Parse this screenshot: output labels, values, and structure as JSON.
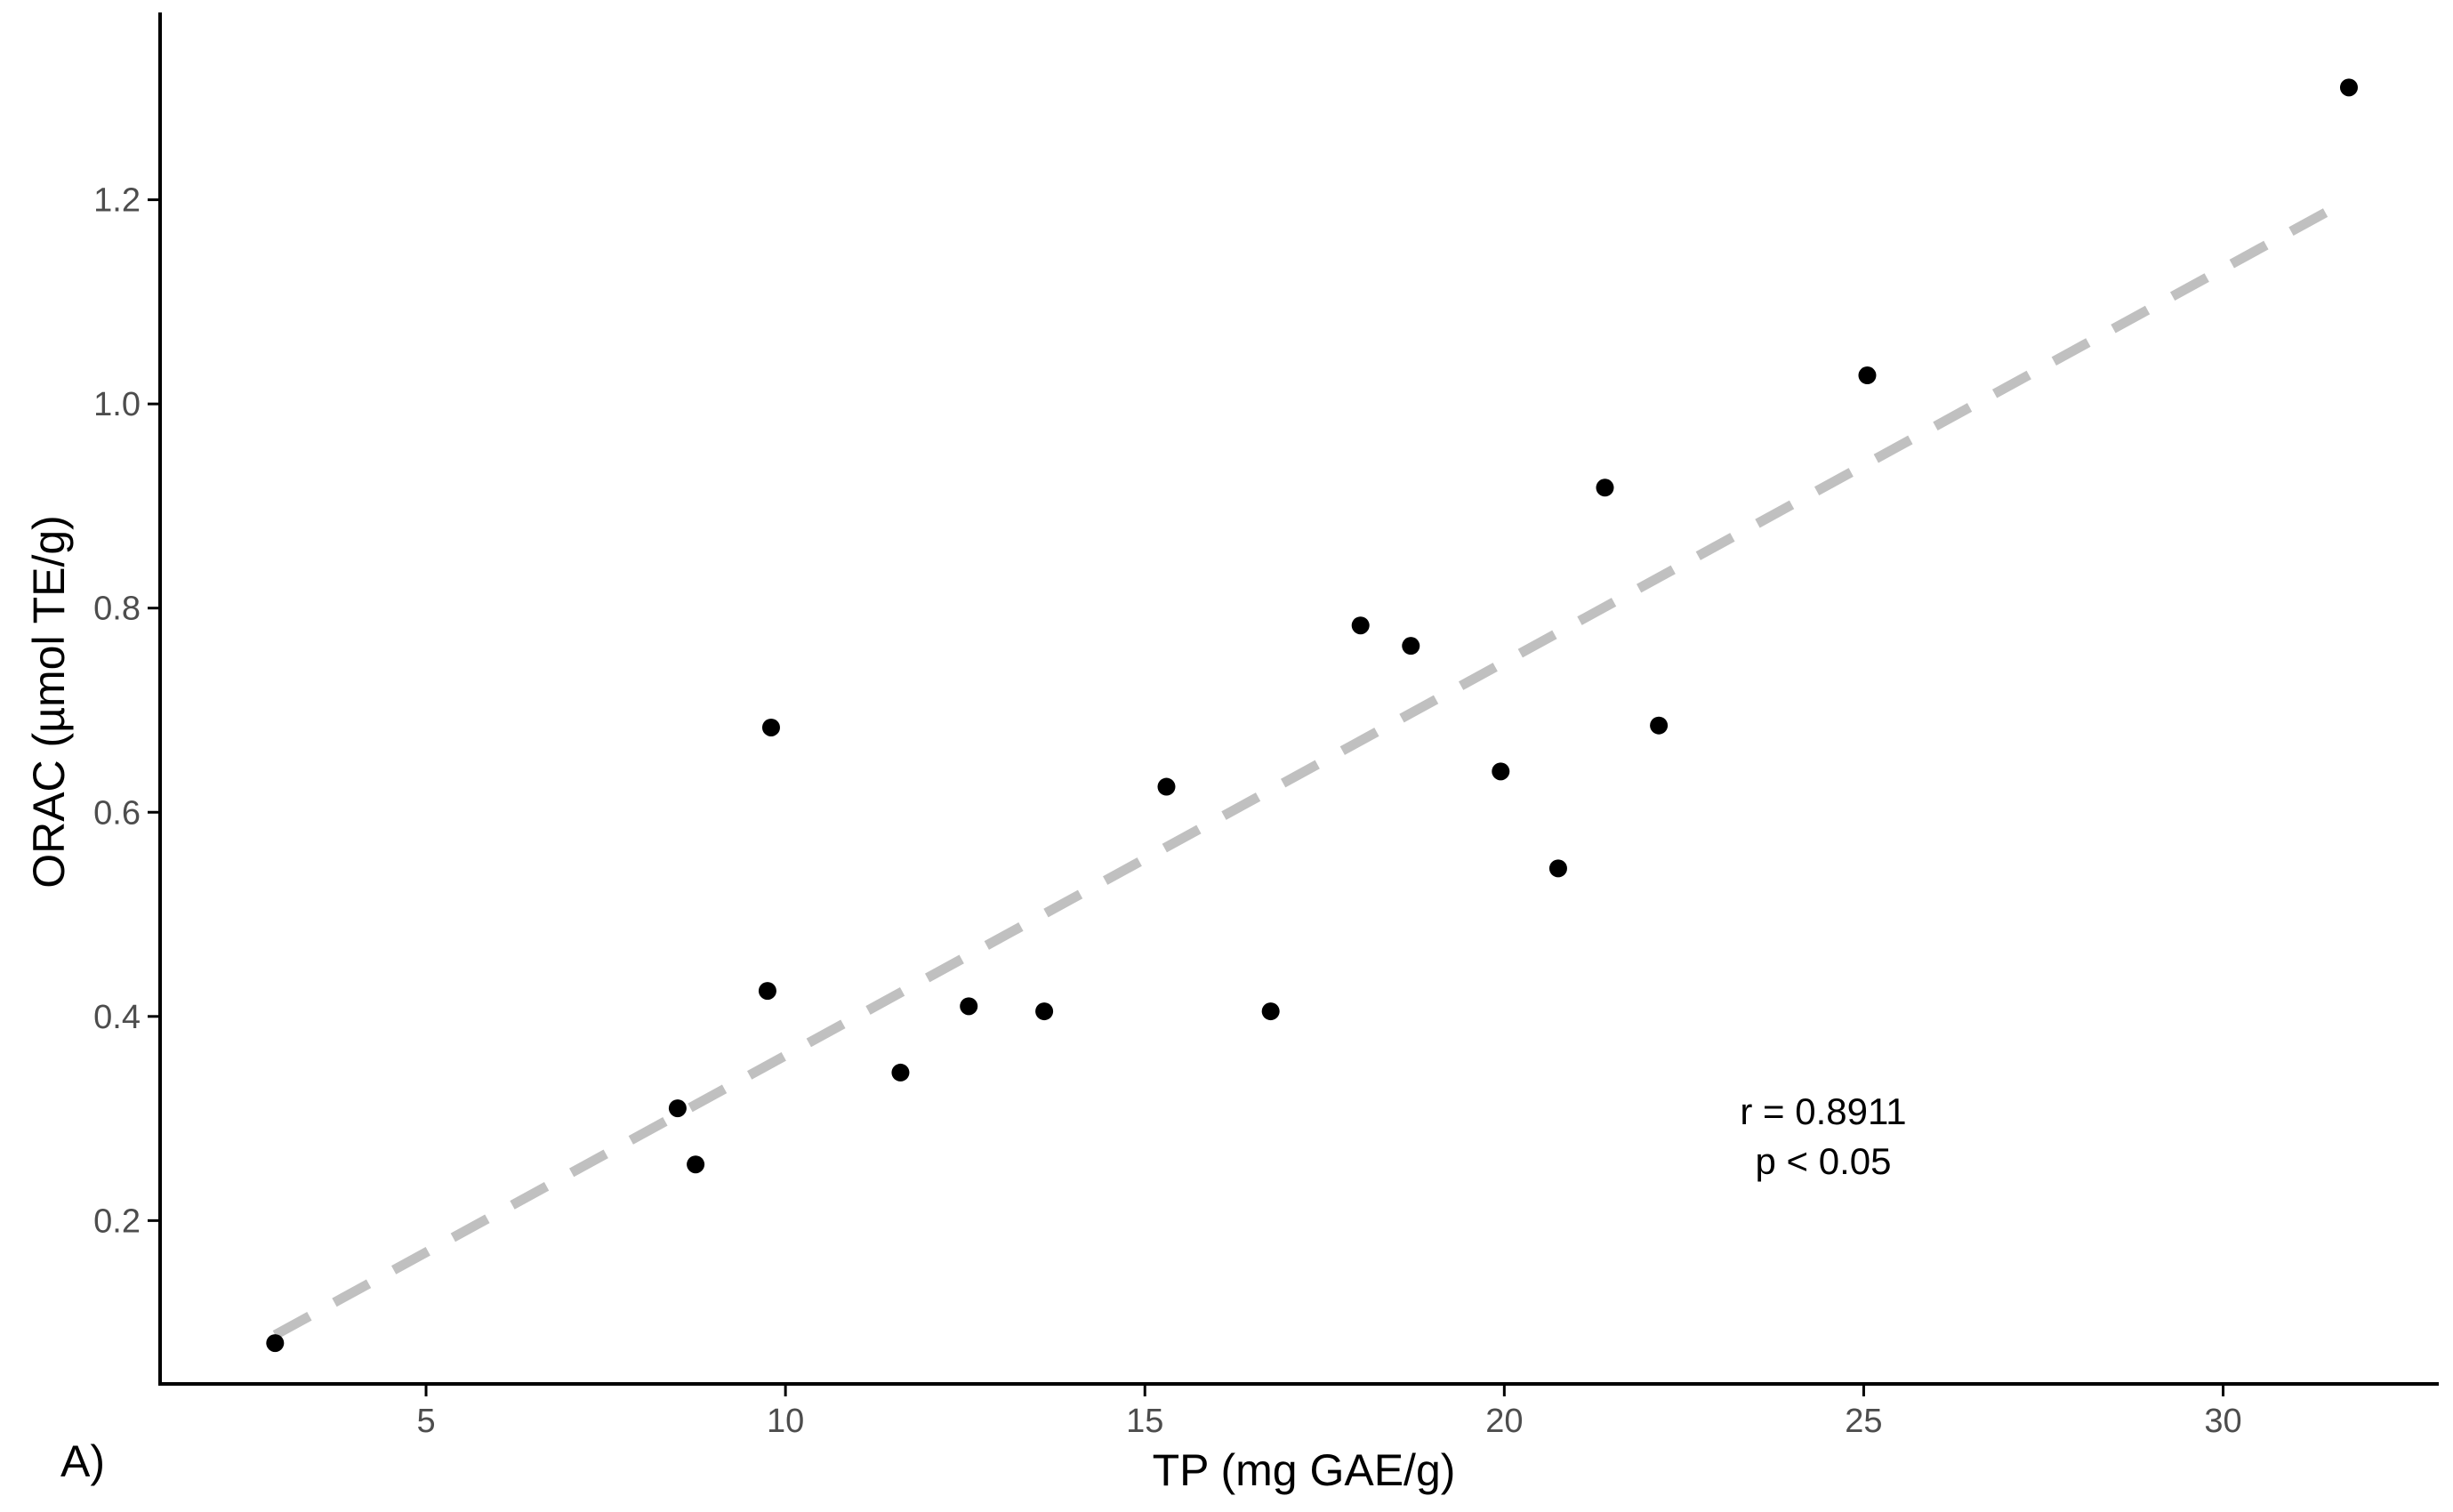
{
  "chart_data": {
    "type": "scatter",
    "xlabel": "TP (mg GAE/g)",
    "ylabel": "ORAC (µmol TE/g)",
    "xlim": [
      1.3,
      33.0
    ],
    "ylim": [
      0.04,
      1.38
    ],
    "xticks": [
      5,
      10,
      15,
      20,
      25,
      30
    ],
    "yticks": [
      0.2,
      0.4,
      0.6,
      0.8,
      1.0,
      1.2
    ],
    "xtick_labels": [
      "5",
      "10",
      "15",
      "20",
      "25",
      "30"
    ],
    "ytick_labels": [
      "0.2",
      "0.4",
      "0.6",
      "0.8",
      "1.0",
      "1.2"
    ],
    "grid": false,
    "points": [
      {
        "x": 2.9,
        "y": 0.08
      },
      {
        "x": 8.5,
        "y": 0.31
      },
      {
        "x": 8.75,
        "y": 0.255
      },
      {
        "x": 9.75,
        "y": 0.425
      },
      {
        "x": 9.8,
        "y": 0.683
      },
      {
        "x": 11.6,
        "y": 0.345
      },
      {
        "x": 12.55,
        "y": 0.41
      },
      {
        "x": 13.6,
        "y": 0.405
      },
      {
        "x": 15.3,
        "y": 0.625
      },
      {
        "x": 16.75,
        "y": 0.405
      },
      {
        "x": 18.0,
        "y": 0.783
      },
      {
        "x": 18.7,
        "y": 0.763
      },
      {
        "x": 19.95,
        "y": 0.64
      },
      {
        "x": 20.75,
        "y": 0.545
      },
      {
        "x": 21.4,
        "y": 0.918
      },
      {
        "x": 22.15,
        "y": 0.685
      },
      {
        "x": 25.05,
        "y": 1.028
      },
      {
        "x": 31.75,
        "y": 1.31
      }
    ],
    "fit_line": {
      "x": [
        2.9,
        31.75
      ],
      "y": [
        0.088,
        1.2
      ],
      "style": "dashed",
      "color": "#c0c0c0"
    },
    "annotations": [
      "r = 0.8911",
      "p < 0.05"
    ],
    "panel_label": "A)",
    "colors": {
      "points": "#000000",
      "fit": "#c0c0c0",
      "axis": "#000000",
      "tick_text": "#4d4d4d"
    }
  }
}
